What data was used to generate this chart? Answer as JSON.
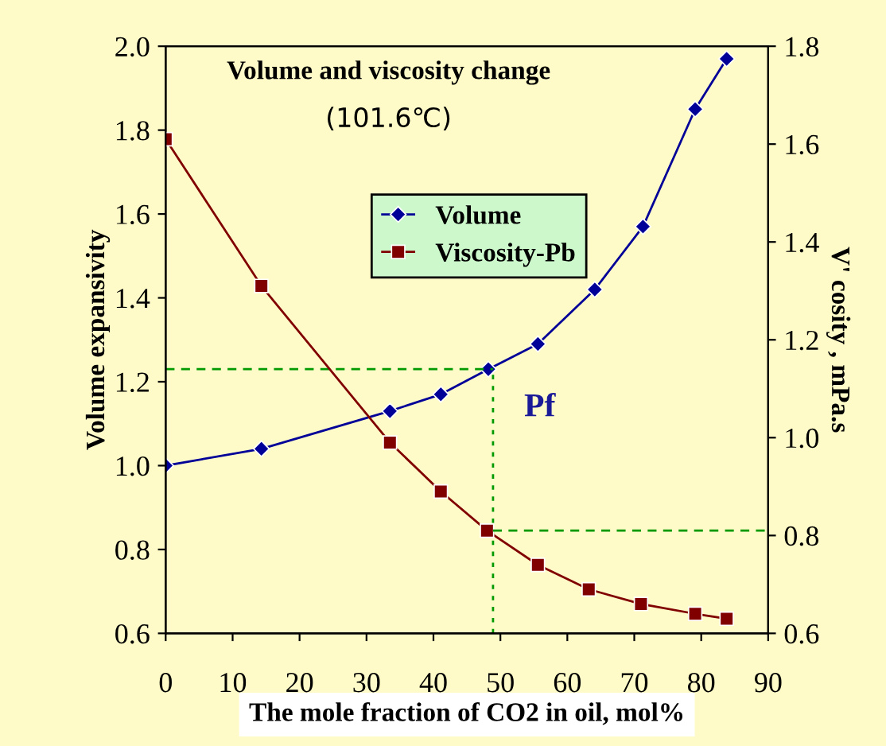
{
  "chart_data": {
    "type": "line",
    "title": "Volume and viscosity change",
    "subtitle": "(101.6℃)",
    "xlabel": "The mole fraction of CO2 in oil, mol%",
    "ylabel": "Volume expansivity",
    "y2label": "V' cosity , mPa.s",
    "series": [
      {
        "name": "Volume",
        "color": "#000099",
        "marker": "diamond",
        "x": [
          0,
          14.3,
          33.5,
          41.1,
          48.2,
          55.6,
          64.1,
          71.3,
          79.1,
          83.8
        ],
        "values": [
          1.0,
          1.04,
          1.13,
          1.17,
          1.23,
          1.29,
          1.42,
          1.57,
          1.85,
          1.97
        ]
      },
      {
        "name": "Viscosity-Pb",
        "color": "#800000",
        "marker": "square",
        "axis": "y2",
        "x": [
          0,
          14.3,
          33.5,
          41.1,
          48.0,
          55.6,
          63.2,
          71.0,
          79.1,
          83.8
        ],
        "values": [
          1.61,
          1.31,
          0.99,
          0.89,
          0.81,
          0.74,
          0.69,
          0.66,
          0.64,
          0.63
        ]
      }
    ],
    "xlim": [
      0,
      90
    ],
    "xticks": [
      0,
      10,
      20,
      30,
      40,
      50,
      60,
      70,
      80,
      90
    ],
    "ylim": [
      0.6,
      2.0
    ],
    "yticks": [
      0.6,
      0.8,
      {
        "value": 1,
        "label": "1.0"
      },
      1.2,
      1.4,
      1.6,
      1.8,
      {
        "value": 2,
        "label": "2.0"
      }
    ],
    "y2lim": [
      0.6,
      1.8
    ],
    "y2ticks": [
      0.6,
      0.8,
      {
        "value": 1,
        "label": "1.0"
      },
      1.2,
      1.4,
      1.6,
      1.8
    ],
    "ref_lines": [
      {
        "axis": "y",
        "value": 1.23,
        "color": "#009900",
        "line_style": "dashed"
      },
      {
        "axis": "x",
        "value": 48.9,
        "color": "#009900",
        "line_style": "dotted"
      },
      {
        "axis": "y2",
        "value": 0.81,
        "color": "#009900",
        "line_style": "dashed"
      }
    ],
    "annotations": [
      "Pf"
    ],
    "legend": "top",
    "grid": false
  }
}
